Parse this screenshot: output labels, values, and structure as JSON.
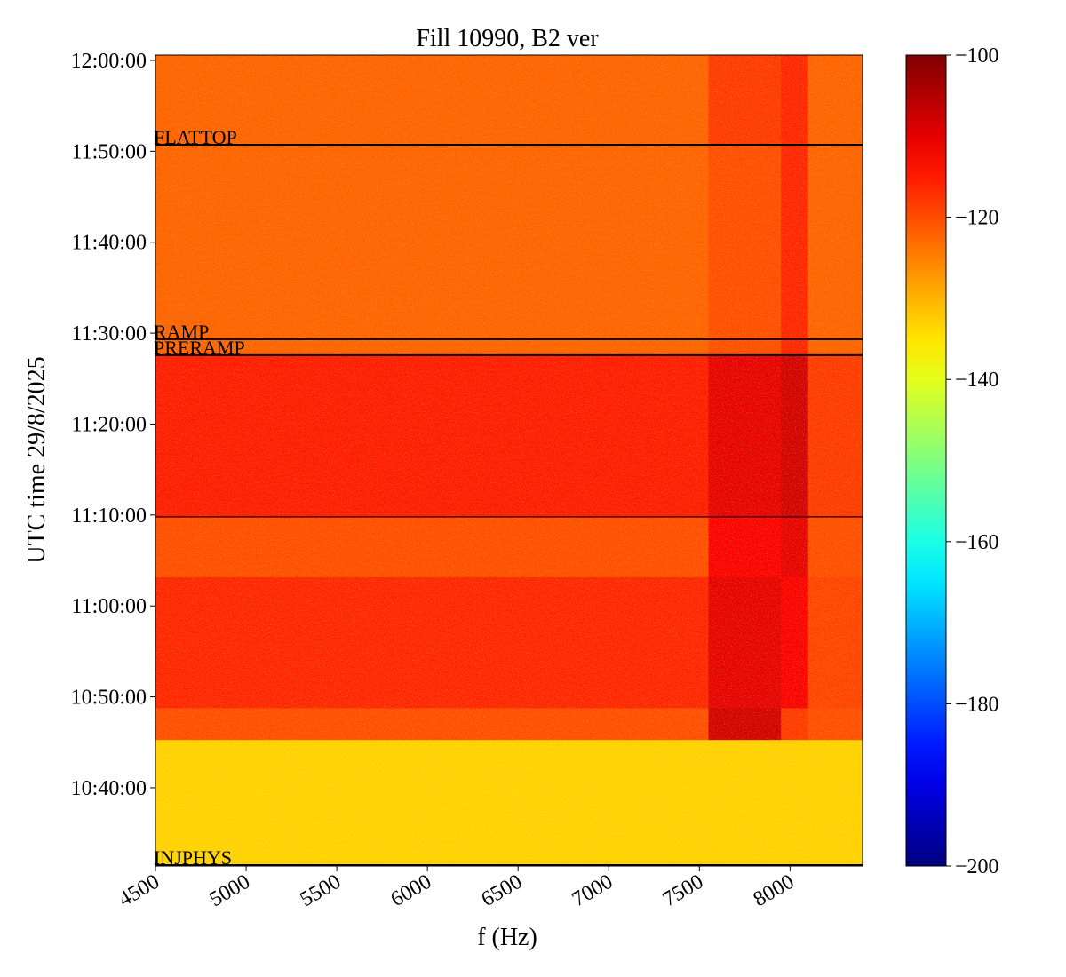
{
  "chart_data": {
    "type": "spectrogram",
    "title": "Fill 10990, B2 ver",
    "x_label": "f (Hz)",
    "y_label": "UTC time 29/8/2025",
    "xlim": [
      4500,
      8400
    ],
    "xticks": [
      4500,
      5000,
      5500,
      6000,
      6500,
      7000,
      7500,
      8000
    ],
    "ylim": [
      37884,
      43235
    ],
    "yticks": [
      {
        "value": 38400,
        "label": "10:40:00"
      },
      {
        "value": 39000,
        "label": "10:50:00"
      },
      {
        "value": 39600,
        "label": "11:00:00"
      },
      {
        "value": 40200,
        "label": "11:10:00"
      },
      {
        "value": 40800,
        "label": "11:20:00"
      },
      {
        "value": 41400,
        "label": "11:30:00"
      },
      {
        "value": 42000,
        "label": "11:40:00"
      },
      {
        "value": 42600,
        "label": "11:50:00"
      },
      {
        "value": 43200,
        "label": "12:00:00"
      }
    ],
    "colormap": "jet",
    "clim": [
      -200,
      -100
    ],
    "cticks": [
      {
        "value": -100,
        "label": "−100"
      },
      {
        "value": -120,
        "label": "−120"
      },
      {
        "value": -140,
        "label": "−140"
      },
      {
        "value": -160,
        "label": "−160"
      },
      {
        "value": -180,
        "label": "−180"
      },
      {
        "value": -200,
        "label": "−200"
      }
    ],
    "f_bins": [
      4500,
      7550,
      7950,
      8100,
      8400
    ],
    "t_bins": [
      37884,
      38718,
      38928,
      39792,
      40188,
      41255,
      42643,
      43235
    ],
    "values": [
      [
        -133,
        -133,
        -133,
        -133
      ],
      [
        -120,
        -108,
        -118,
        -120
      ],
      [
        -116,
        -110,
        -112,
        -119
      ],
      [
        -120,
        -112,
        -110,
        -120
      ],
      [
        -115,
        -110,
        -108,
        -118
      ],
      [
        -122,
        -120,
        -116,
        -122
      ],
      [
        -122,
        -118,
        -116,
        -122
      ]
    ],
    "events": [
      {
        "name": "FLATTOP",
        "t": 42643
      },
      {
        "name": "RAMP",
        "t": 41360
      },
      {
        "name": "PRERAMP",
        "t": 41255
      },
      {
        "t": 40188
      },
      {
        "name": "INJPHYS",
        "t": 37890
      }
    ]
  }
}
